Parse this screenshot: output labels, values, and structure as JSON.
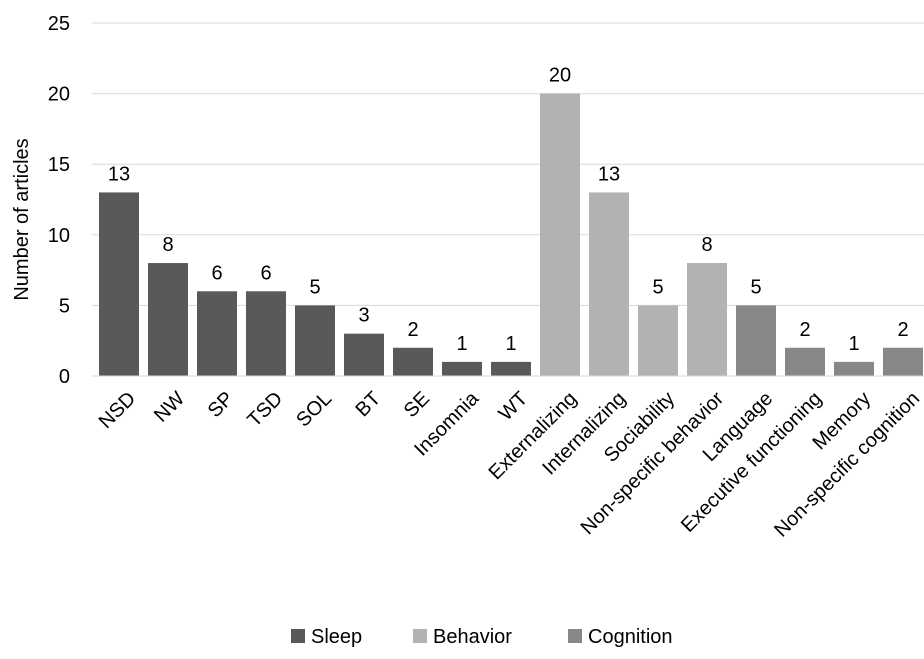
{
  "chart_data": {
    "type": "bar",
    "title": "",
    "xlabel": "",
    "ylabel": "Number of articles",
    "ylim": [
      0,
      25
    ],
    "yticks": [
      0,
      5,
      10,
      15,
      20,
      25
    ],
    "grid": true,
    "legend_position": "bottom",
    "categories": [
      "NSD",
      "NW",
      "SP",
      "TSD",
      "SOL",
      "BT",
      "SE",
      "Insomnia",
      "WT",
      "Externalizing",
      "Internalizing",
      "Sociability",
      "Non-specific behavior",
      "Language",
      "Executive functioning",
      "Memory",
      "Non-specific cognition"
    ],
    "values": [
      13,
      8,
      6,
      6,
      5,
      3,
      2,
      1,
      1,
      20,
      13,
      5,
      8,
      5,
      2,
      1,
      2
    ],
    "groups": [
      "Sleep",
      "Sleep",
      "Sleep",
      "Sleep",
      "Sleep",
      "Sleep",
      "Sleep",
      "Sleep",
      "Sleep",
      "Behavior",
      "Behavior",
      "Behavior",
      "Behavior",
      "Cognition",
      "Cognition",
      "Cognition",
      "Cognition"
    ],
    "series": [
      {
        "name": "Sleep",
        "color": "#595959"
      },
      {
        "name": "Behavior",
        "color": "#b2b2b2"
      },
      {
        "name": "Cognition",
        "color": "#878787"
      }
    ]
  },
  "colors": {
    "gridline": "#d9d9d9",
    "axis": "#d9d9d9",
    "text": "#000000"
  }
}
